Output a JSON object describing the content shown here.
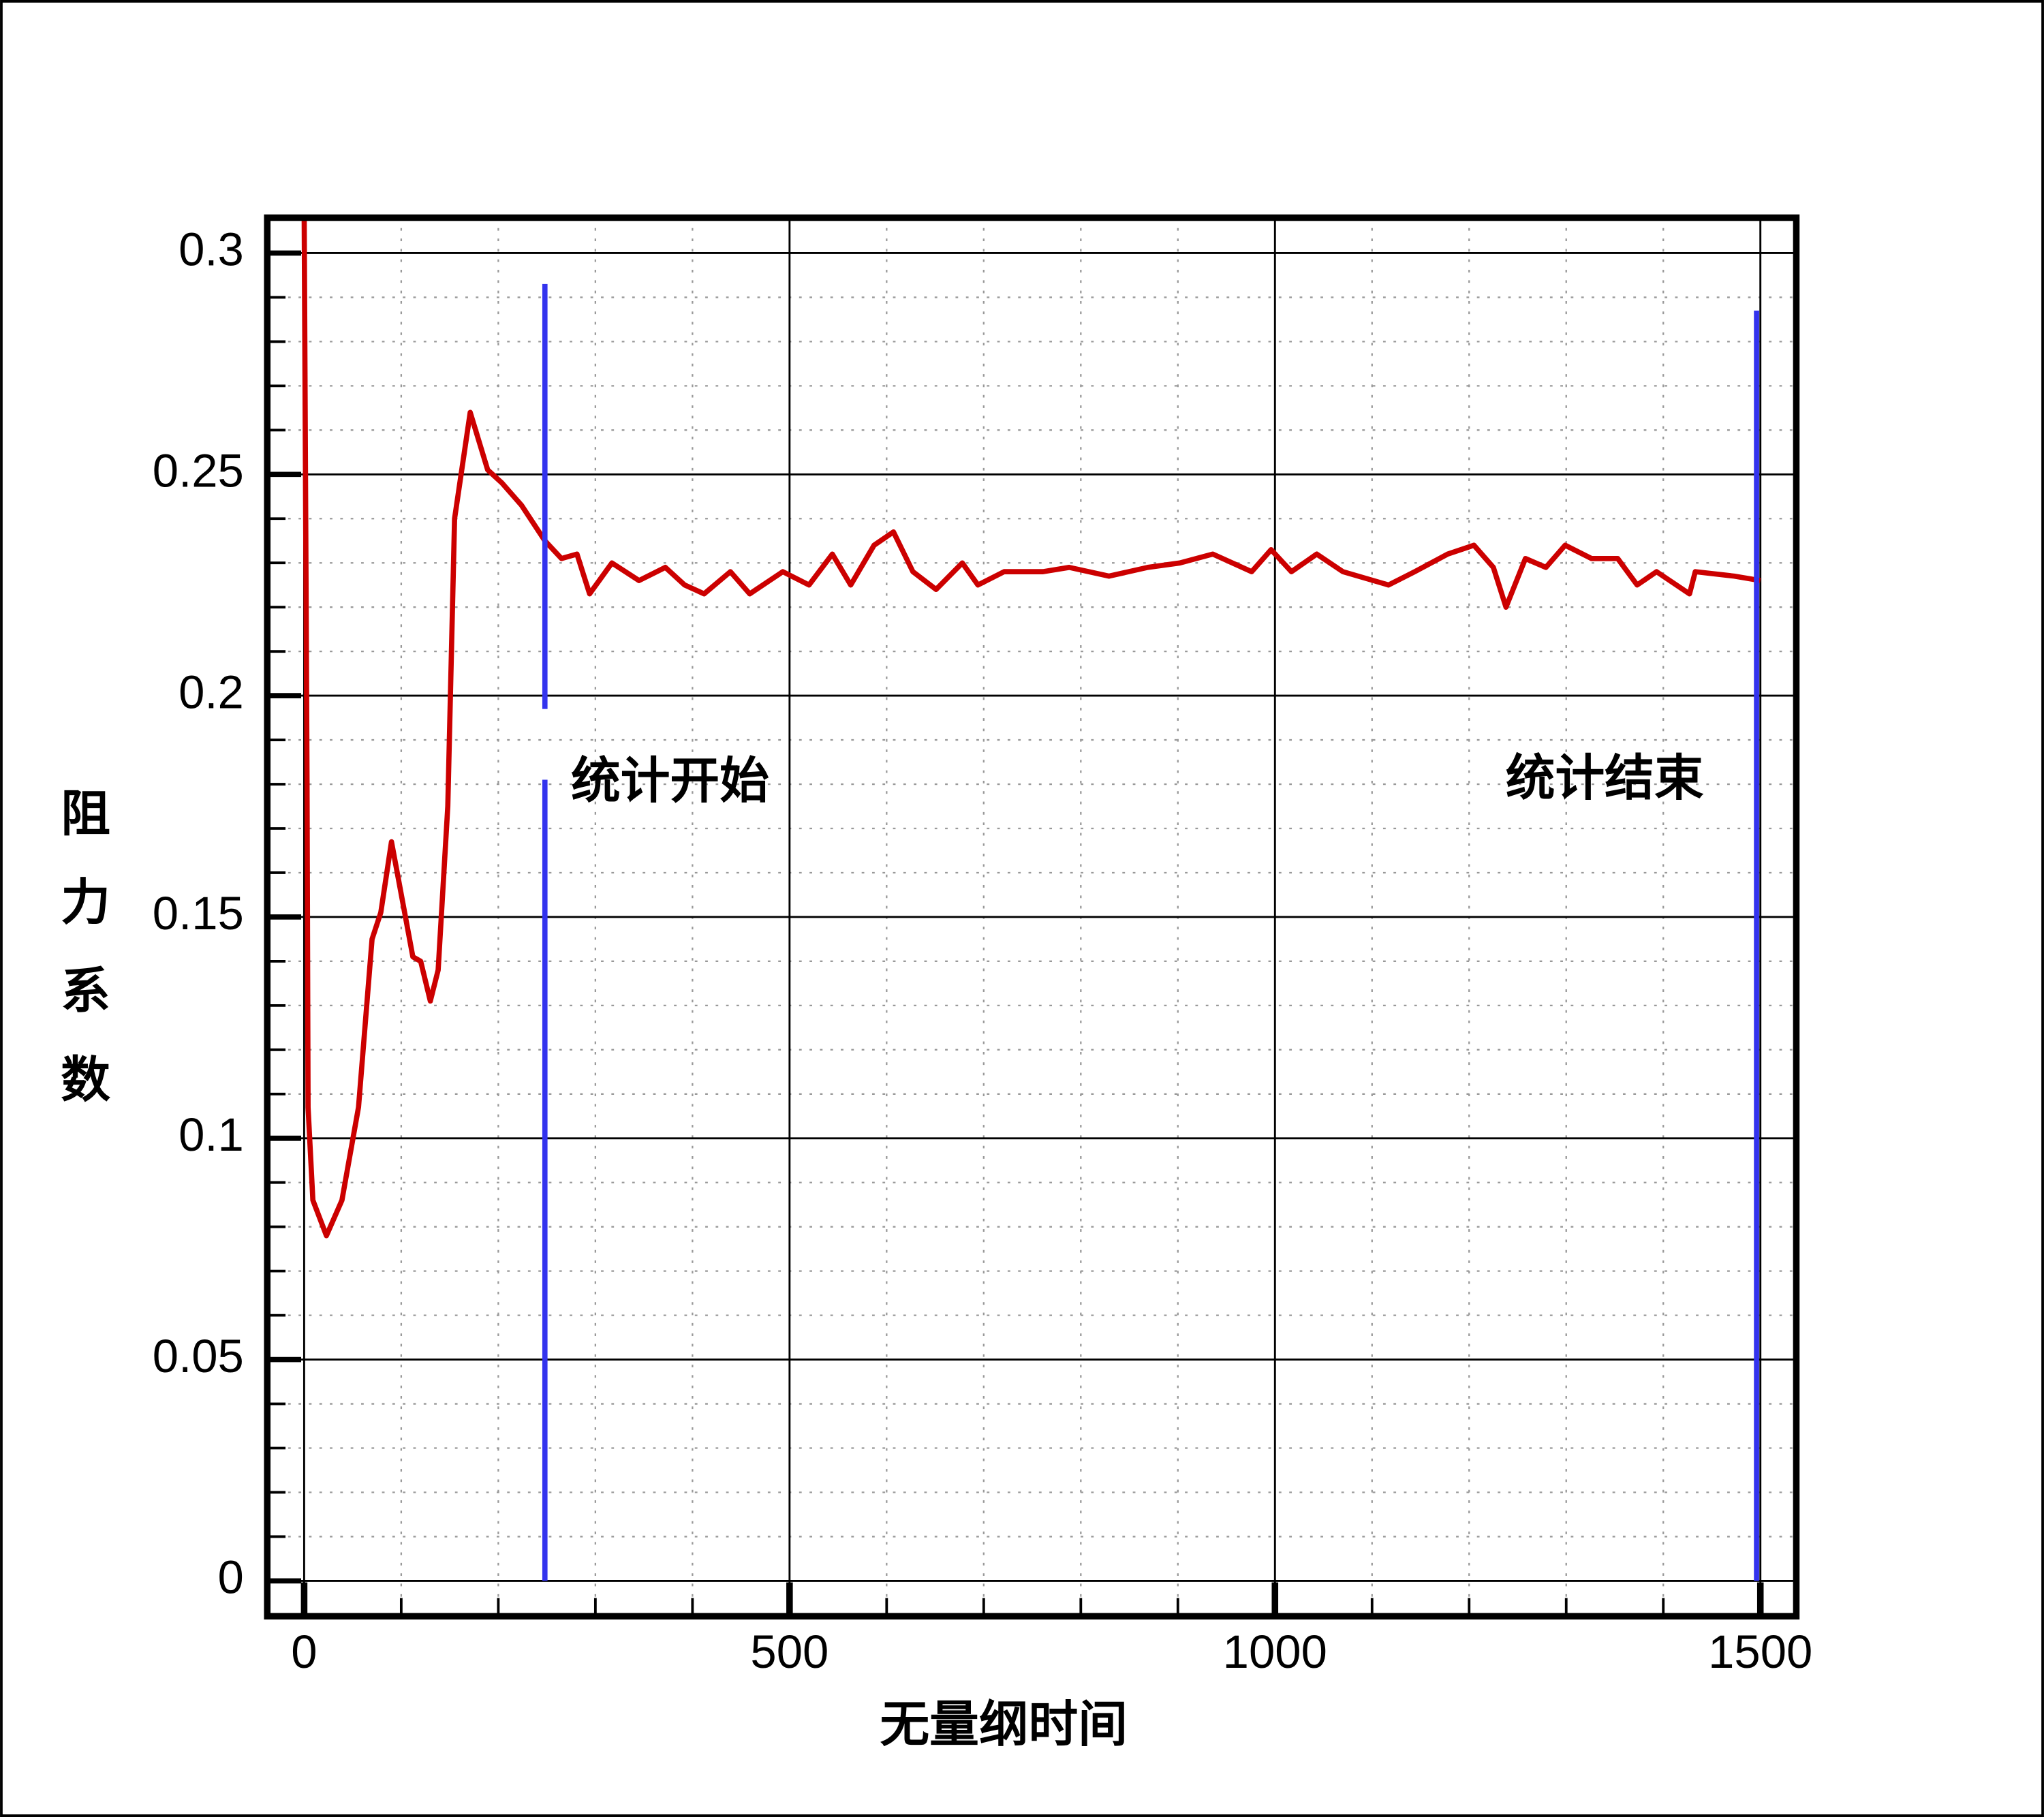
{
  "chart_data": {
    "type": "line",
    "xlabel": "无量纲时间",
    "ylabel": "阻力系数",
    "annotations": [
      "统计开始",
      "统计结束"
    ],
    "xlim": [
      -38,
      1537
    ],
    "ylim": [
      -0.008,
      0.308
    ],
    "xticks": [
      0,
      500,
      1000,
      1500
    ],
    "yticks": [
      0,
      0.05,
      0.1,
      0.15,
      0.2,
      0.25,
      0.3
    ],
    "xminorticks": [
      100,
      200,
      300,
      400,
      600,
      700,
      800,
      900,
      1100,
      1200,
      1300,
      1400
    ],
    "yminorticks": [
      0.01,
      0.02,
      0.03,
      0.04,
      0.06,
      0.07,
      0.08,
      0.09,
      0.11,
      0.12,
      0.13,
      0.14,
      0.16,
      0.17,
      0.18,
      0.19,
      0.21,
      0.22,
      0.23,
      0.24,
      0.26,
      0.27,
      0.28,
      0.29
    ],
    "grid": true,
    "series": [
      {
        "color": "#cc0000",
        "x": [
          0,
          3,
          4,
          9,
          23,
          39,
          56,
          70,
          79,
          90,
          101,
          112,
          120,
          130,
          138,
          148,
          155,
          171,
          189,
          204,
          224,
          248,
          265,
          281,
          294,
          317,
          345,
          372,
          392,
          412,
          439,
          459,
          493,
          520,
          544,
          563,
          587,
          607,
          627,
          651,
          678,
          694,
          721,
          761,
          788,
          829,
          869,
          902,
          936,
          976,
          996,
          1017,
          1043,
          1070,
          1117,
          1144,
          1178,
          1205,
          1225,
          1238,
          1258,
          1279,
          1299,
          1326,
          1353,
          1373,
          1393,
          1427,
          1433,
          1473,
          1500
        ],
        "values": [
          0.31,
          0.181,
          0.107,
          0.086,
          0.078,
          0.086,
          0.107,
          0.145,
          0.151,
          0.167,
          0.154,
          0.141,
          0.14,
          0.131,
          0.138,
          0.175,
          0.24,
          0.264,
          0.251,
          0.248,
          0.243,
          0.235,
          0.231,
          0.232,
          0.223,
          0.23,
          0.226,
          0.229,
          0.225,
          0.223,
          0.228,
          0.223,
          0.228,
          0.225,
          0.232,
          0.225,
          0.234,
          0.237,
          0.228,
          0.224,
          0.23,
          0.225,
          0.228,
          0.228,
          0.229,
          0.227,
          0.229,
          0.23,
          0.232,
          0.228,
          0.233,
          0.228,
          0.232,
          0.228,
          0.225,
          0.228,
          0.232,
          0.234,
          0.229,
          0.22,
          0.231,
          0.229,
          0.234,
          0.231,
          0.231,
          0.225,
          0.228,
          0.223,
          0.228,
          0.227,
          0.226
        ]
      },
      {
        "color": "#3333ee",
        "x": [
          248,
          248,
          248,
          248,
          248
        ],
        "values": [
          0.293,
          0.197,
          null,
          0.181,
          0
        ]
      },
      {
        "color": "#3333ee",
        "x": [
          1496,
          1496
        ],
        "values": [
          0.287,
          0
        ]
      }
    ]
  }
}
